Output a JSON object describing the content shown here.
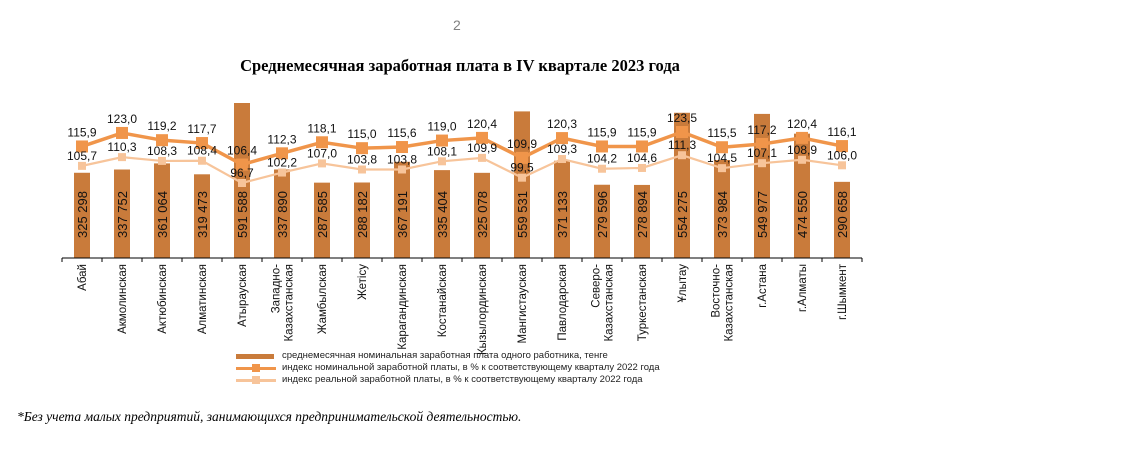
{
  "page": {
    "number": "2"
  },
  "footnote": "*Без учета малых предприятий, занимающихся предпринимательской деятельностью.",
  "chart_data": {
    "type": "bar",
    "title": "Среднемесячная заработная плата в IV квартале 2023 года",
    "xlabel": "",
    "ylabel": "",
    "grid": false,
    "legend_position": "bottom",
    "categories": [
      "Абай",
      "Акмолинская",
      "Актюбинская",
      "Алматинская",
      "Атырауская",
      "Западно-Казахстанская",
      "Жамбылская",
      "Жетісу",
      "Карагандинская",
      "Костанайская",
      "Кызылординская",
      "Мангистауская",
      "Павлодарская",
      "Северо-Казахстанская",
      "Туркестанская",
      "Ұлытау",
      "Восточно-Казахстанская",
      "г.Астана",
      "г.Алматы",
      "г.Шымкент"
    ],
    "category_lines": [
      [
        "Абай"
      ],
      [
        "Акмолинская"
      ],
      [
        "Актюбинская"
      ],
      [
        "Алматинская"
      ],
      [
        "Атырауская"
      ],
      [
        "Западно-",
        "Казахстанская"
      ],
      [
        "Жамбылская"
      ],
      [
        "Жетісу"
      ],
      [
        "Карагандинская"
      ],
      [
        "Костанайская"
      ],
      [
        "Кызылординская"
      ],
      [
        "Мангистауская"
      ],
      [
        "Павлодарская"
      ],
      [
        "Северо-",
        "Казахстанская"
      ],
      [
        "Туркестанская"
      ],
      [
        "Ұлытау"
      ],
      [
        "Восточно-",
        "Казахстанская"
      ],
      [
        "г.Астана"
      ],
      [
        "г.Алматы"
      ],
      [
        "г.Шымкент"
      ]
    ],
    "series": [
      {
        "name": "среднемесячная номинальная заработная плата одного работника, тенге",
        "type": "bar",
        "color": "#c97b3b",
        "values": [
          325298,
          337752,
          361064,
          319473,
          591588,
          337890,
          287585,
          288182,
          367191,
          335404,
          325078,
          559531,
          371133,
          279596,
          278894,
          554275,
          373984,
          549977,
          474550,
          290658
        ],
        "labels": [
          "325 298",
          "337 752",
          "361 064",
          "319 473",
          "591 588",
          "337 890",
          "287 585",
          "288 182",
          "367 191",
          "335 404",
          "325 078",
          "559 531",
          "371 133",
          "279 596",
          "278 894",
          "554 275",
          "373 984",
          "549 977",
          "474 550",
          "290 658"
        ]
      },
      {
        "name": "индекс номинальной заработной платы, в % к соответствующему кварталу 2022 года",
        "type": "line",
        "color": "#f0954a",
        "values": [
          115.9,
          123.0,
          119.2,
          117.7,
          106.4,
          112.3,
          118.1,
          115.0,
          115.6,
          119.0,
          120.4,
          109.9,
          120.3,
          115.9,
          115.9,
          123.5,
          115.5,
          117.2,
          120.4,
          116.1
        ],
        "labels": [
          "115,9",
          "123,0",
          "119,2",
          "117,7",
          "106,4",
          "112,3",
          "118,1",
          "115,0",
          "115,6",
          "119,0",
          "120,4",
          "109,9",
          "120,3",
          "115,9",
          "115,9",
          "123,5",
          "115,5",
          "117,2",
          "120,4",
          "116,1"
        ]
      },
      {
        "name": "индекс реальной заработной платы, в % к соответствующему кварталу 2022 года",
        "type": "line",
        "color": "#f7c49a",
        "values": [
          105.7,
          110.3,
          108.3,
          108.4,
          96.7,
          102.2,
          107.0,
          103.8,
          103.8,
          108.1,
          109.9,
          99.5,
          109.3,
          104.2,
          104.6,
          111.3,
          104.5,
          107.1,
          108.9,
          106.0
        ],
        "labels": [
          "105,7",
          "110,3",
          "108,3",
          "108,4",
          "96,7",
          "102,2",
          "107,0",
          "103,8",
          "103,8",
          "108,1",
          "109,9",
          "99,5",
          "109,3",
          "104,2",
          "104,6",
          "111,3",
          "104,5",
          "107,1",
          "108,9",
          "106,0"
        ]
      }
    ],
    "ylim_bars": [
      0,
      600000
    ],
    "ylim_index": [
      60,
      150
    ]
  }
}
